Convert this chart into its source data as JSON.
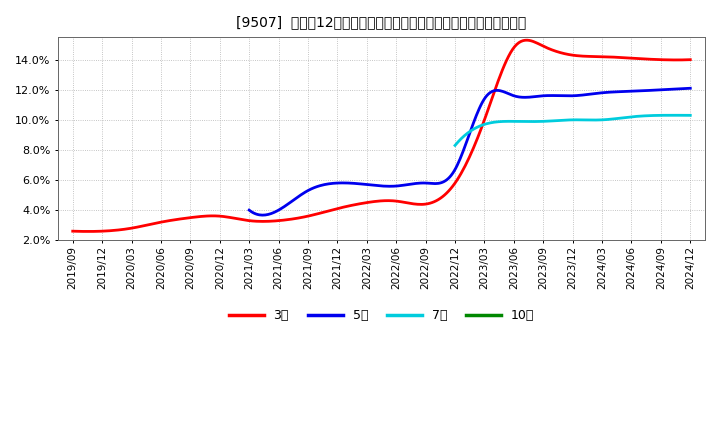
{
  "title": "[9507]  売上高12か月移動合計の対前年同期増減率の標準偏差の推移",
  "ylim": [
    0.02,
    0.155
  ],
  "yticks": [
    0.02,
    0.04,
    0.06,
    0.08,
    0.1,
    0.12,
    0.14
  ],
  "background_color": "#ffffff",
  "plot_bg_color": "#ffffff",
  "grid_color": "#aaaaaa",
  "series": {
    "3year": {
      "color": "#ff0000",
      "label": "3年",
      "x": [
        0,
        1,
        2,
        3,
        4,
        5,
        6,
        7,
        8,
        9,
        10,
        11,
        12,
        13,
        14,
        15,
        16,
        17,
        18,
        19,
        20,
        21
      ],
      "y": [
        0.026,
        0.026,
        0.028,
        0.032,
        0.035,
        0.036,
        0.033,
        0.033,
        0.036,
        0.041,
        0.045,
        0.046,
        0.044,
        0.058,
        0.1,
        0.148,
        0.149,
        0.143,
        0.142,
        0.141,
        0.14,
        0.14
      ]
    },
    "5year": {
      "color": "#0000ee",
      "label": "5年",
      "x": [
        6,
        7,
        8,
        9,
        10,
        11,
        12,
        13,
        14,
        15,
        16,
        17,
        18,
        19,
        20,
        21
      ],
      "y": [
        0.04,
        0.04,
        0.053,
        0.058,
        0.057,
        0.056,
        0.058,
        0.067,
        0.114,
        0.116,
        0.116,
        0.116,
        0.118,
        0.119,
        0.12,
        0.121
      ]
    },
    "7year": {
      "color": "#00ccdd",
      "label": "7年",
      "x": [
        13,
        14,
        15,
        16,
        17,
        18,
        19,
        20,
        21
      ],
      "y": [
        0.083,
        0.097,
        0.099,
        0.099,
        0.1,
        0.1,
        0.102,
        0.103,
        0.103
      ]
    },
    "10year": {
      "color": "#008800",
      "label": "10年",
      "x": [],
      "y": []
    }
  },
  "x_tick_labels": [
    "2019/09",
    "2019/12",
    "2020/03",
    "2020/06",
    "2020/09",
    "2020/12",
    "2021/03",
    "2021/06",
    "2021/09",
    "2021/12",
    "2022/03",
    "2022/06",
    "2022/09",
    "2022/12",
    "2023/03",
    "2023/06",
    "2023/09",
    "2023/12",
    "2024/03",
    "2024/06",
    "2024/09",
    "2024/12"
  ],
  "legend_labels": [
    "3年",
    "5年",
    "7年",
    "10年"
  ],
  "legend_colors": [
    "#ff0000",
    "#0000ee",
    "#00ccdd",
    "#008800"
  ],
  "line_width": 2.0,
  "title_fontsize": 10,
  "tick_fontsize": 7.5,
  "legend_fontsize": 9
}
